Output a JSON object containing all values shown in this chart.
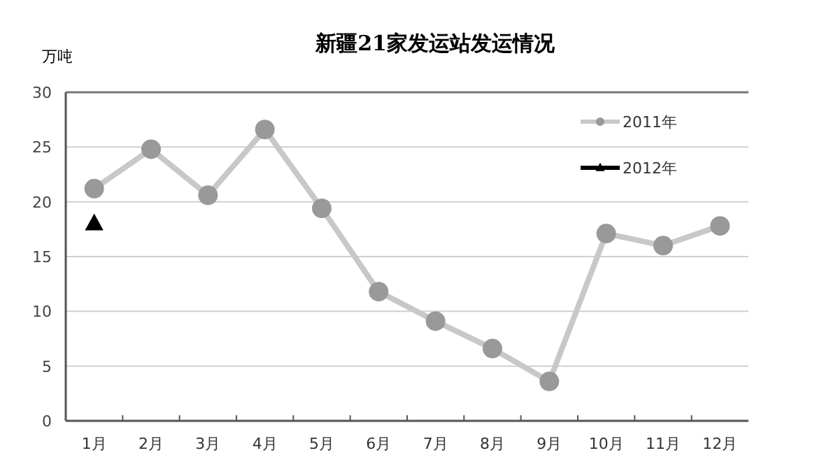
{
  "chart_data": {
    "type": "line",
    "title": "新疆21家发运站发运情况",
    "ylabel": "万吨",
    "categories": [
      "1月",
      "2月",
      "3月",
      "4月",
      "5月",
      "6月",
      "7月",
      "8月",
      "9月",
      "10月",
      "11月",
      "12月"
    ],
    "series": [
      {
        "name": "2011年",
        "color": "#c8c8c8",
        "marker": "circle",
        "values": [
          21.2,
          24.8,
          20.6,
          26.6,
          19.4,
          11.8,
          9.1,
          6.6,
          3.6,
          17.1,
          16.0,
          17.8
        ]
      },
      {
        "name": "2012年",
        "color": "#000000",
        "marker": "triangle",
        "values": [
          18.0,
          null,
          null,
          null,
          null,
          null,
          null,
          null,
          null,
          null,
          null,
          null
        ]
      }
    ],
    "ylim": [
      0,
      30
    ],
    "yticks": [
      0,
      5,
      10,
      15,
      20,
      25,
      30
    ],
    "grid": "y",
    "legend": "top right",
    "line_style": "solid"
  }
}
